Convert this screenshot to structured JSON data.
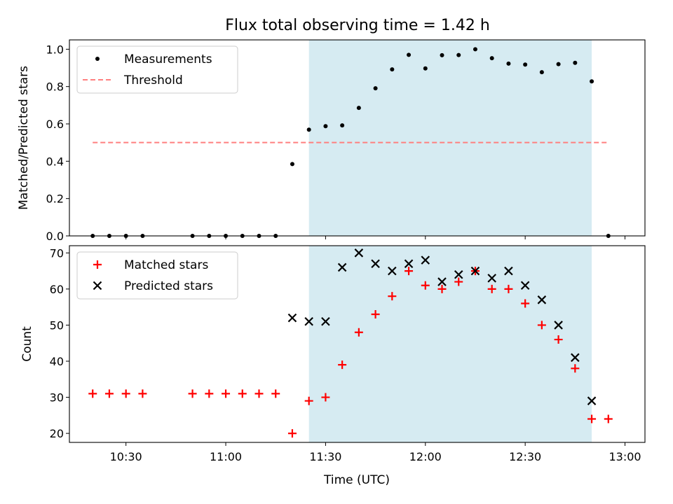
{
  "title": "Flux total observing time = 1.42 h",
  "xlabel": "Time (UTC)",
  "chart_data": [
    {
      "type": "scatter",
      "ylabel": "Matched/Predicted stars",
      "xlim": [
        "10:13",
        "13:06"
      ],
      "ylim": [
        0,
        1.05
      ],
      "yticks": [
        "0.0",
        "0.2",
        "0.4",
        "0.6",
        "0.8",
        "1.0"
      ],
      "legend_position": "upper left",
      "shaded_interval": [
        "11:25",
        "12:50"
      ],
      "series": [
        {
          "name": "Measurements",
          "marker": "dot",
          "color": "#000000",
          "x": [
            "10:20",
            "10:25",
            "10:30",
            "10:35",
            "10:50",
            "10:55",
            "11:00",
            "11:05",
            "11:10",
            "11:15",
            "11:20",
            "11:25",
            "11:30",
            "11:35",
            "11:40",
            "11:45",
            "11:50",
            "11:55",
            "12:00",
            "12:05",
            "12:10",
            "12:15",
            "12:20",
            "12:25",
            "12:30",
            "12:35",
            "12:40",
            "12:45",
            "12:50",
            "12:55"
          ],
          "y": [
            0,
            0,
            0,
            0,
            0,
            0,
            0,
            0,
            0,
            0,
            0.385,
            0.569,
            0.588,
            0.592,
            0.686,
            0.791,
            0.892,
            0.97,
            0.897,
            0.968,
            0.969,
            1.0,
            0.952,
            0.923,
            0.918,
            0.877,
            0.92,
            0.927,
            0.828,
            0
          ]
        },
        {
          "name": "Threshold",
          "marker": "dashed-line",
          "color": "#ff7f7f",
          "x": [
            "10:20",
            "12:55"
          ],
          "y": [
            0.5,
            0.5
          ]
        }
      ]
    },
    {
      "type": "scatter",
      "ylabel": "Count",
      "xlim": [
        "10:13",
        "13:06"
      ],
      "ylim": [
        17.5,
        72
      ],
      "yticks": [
        "20",
        "30",
        "40",
        "50",
        "60",
        "70"
      ],
      "xticks": [
        "10:30",
        "11:00",
        "11:30",
        "12:00",
        "12:30",
        "13:00"
      ],
      "legend_position": "upper left",
      "shaded_interval": [
        "11:25",
        "12:50"
      ],
      "series": [
        {
          "name": "Matched stars",
          "marker": "plus",
          "color": "#ff0000",
          "x": [
            "10:20",
            "10:25",
            "10:30",
            "10:35",
            "10:50",
            "10:55",
            "11:00",
            "11:05",
            "11:10",
            "11:15",
            "11:20",
            "11:25",
            "11:30",
            "11:35",
            "11:40",
            "11:45",
            "11:50",
            "11:55",
            "12:00",
            "12:05",
            "12:10",
            "12:15",
            "12:20",
            "12:25",
            "12:30",
            "12:35",
            "12:40",
            "12:45",
            "12:50",
            "12:55"
          ],
          "y": [
            31,
            31,
            31,
            31,
            31,
            31,
            31,
            31,
            31,
            31,
            20,
            29,
            30,
            39,
            48,
            53,
            58,
            65,
            61,
            60,
            62,
            65,
            60,
            60,
            56,
            50,
            46,
            38,
            24,
            24
          ]
        },
        {
          "name": "Predicted stars",
          "marker": "x",
          "color": "#000000",
          "x": [
            "11:20",
            "11:25",
            "11:30",
            "11:35",
            "11:40",
            "11:45",
            "11:50",
            "11:55",
            "12:00",
            "12:05",
            "12:10",
            "12:15",
            "12:20",
            "12:25",
            "12:30",
            "12:35",
            "12:40",
            "12:45",
            "12:50"
          ],
          "y": [
            52,
            51,
            51,
            66,
            70,
            67,
            65,
            67,
            68,
            62,
            64,
            65,
            63,
            65,
            61,
            57,
            50,
            41,
            29
          ]
        }
      ]
    }
  ]
}
